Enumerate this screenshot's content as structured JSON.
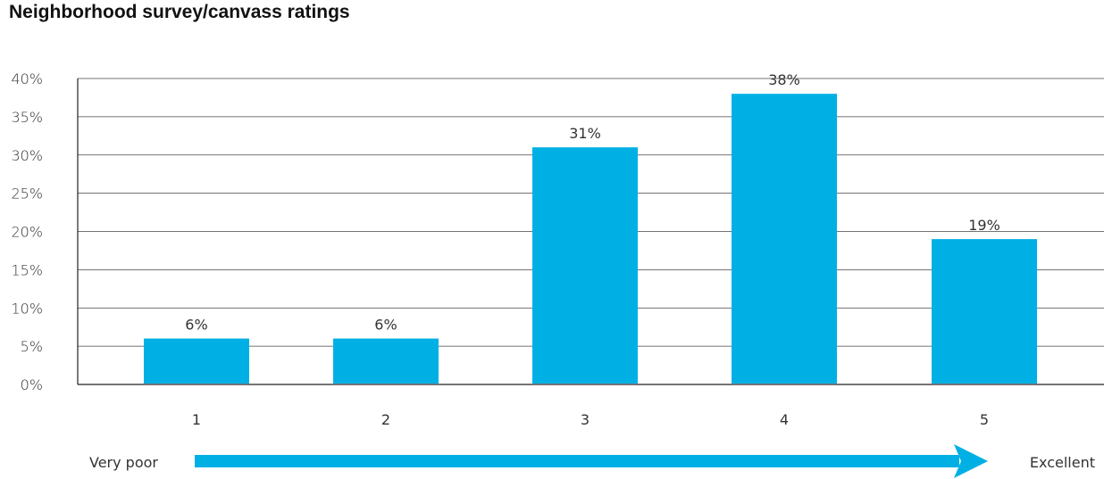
{
  "chart_data": {
    "type": "bar",
    "title": "Neighborhood survey/canvass ratings",
    "categories": [
      "1",
      "2",
      "3",
      "4",
      "5"
    ],
    "values": [
      6,
      6,
      31,
      38,
      19
    ],
    "data_labels": [
      "6%",
      "6%",
      "31%",
      "38%",
      "19%"
    ],
    "y_ticks": [
      "0%",
      "5%",
      "10%",
      "15%",
      "20%",
      "25%",
      "30%",
      "35%",
      "40%"
    ],
    "ylim": [
      0,
      40
    ],
    "grid": true,
    "bar_color": "#00b0e4",
    "scale_low_label": "Very poor",
    "scale_high_label": "Excellent",
    "arrow_color": "#00b0e4"
  }
}
